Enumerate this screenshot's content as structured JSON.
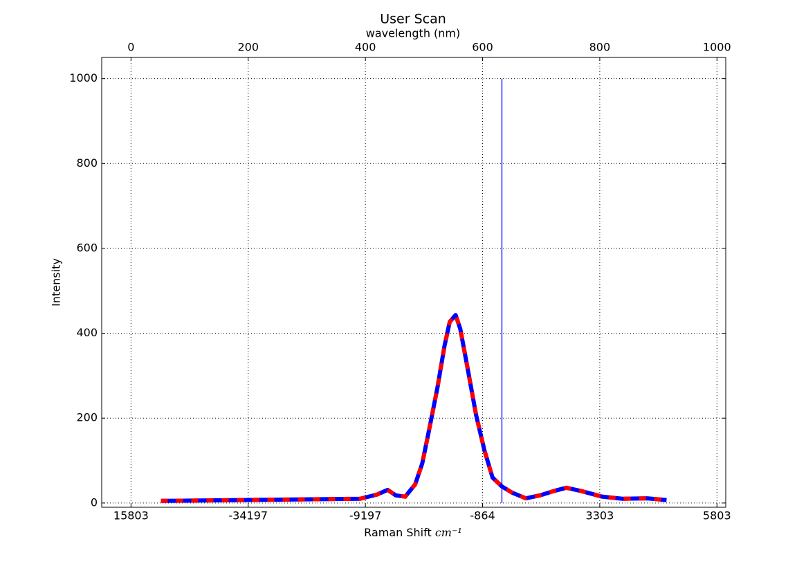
{
  "chart_data": {
    "type": "line",
    "title": "User Scan",
    "x2_label": "wavelength (nm)",
    "x_label": "Raman Shift",
    "x_label_unit": "cm⁻¹",
    "y_label": "Intensity",
    "xlim": [
      -50,
      1015
    ],
    "ylim": [
      -10,
      1050
    ],
    "x2ticks": [
      0,
      200,
      400,
      600,
      800,
      1000
    ],
    "xticks": [
      {
        "value": 0,
        "label": "15803"
      },
      {
        "value": 200,
        "label": "-34197"
      },
      {
        "value": 400,
        "label": "-9197"
      },
      {
        "value": 600,
        "label": "-864"
      },
      {
        "value": 800,
        "label": "3303"
      },
      {
        "value": 1000,
        "label": "5803"
      }
    ],
    "yticks": [
      0,
      200,
      400,
      600,
      800,
      1000
    ],
    "grid": true,
    "series": [
      {
        "color": "#0000ff",
        "dash_color": "#ff0000",
        "x": [
          51,
          391,
          420,
          438,
          452,
          468,
          485,
          497,
          509,
          523,
          535,
          544,
          554,
          562,
          574,
          589,
          603,
          617,
          633,
          651,
          674,
          698,
          721,
          743,
          769,
          804,
          839,
          881,
          914
        ],
        "values": [
          5,
          10,
          20,
          31,
          18,
          15,
          44,
          93,
          174,
          272,
          370,
          427,
          443,
          410,
          321,
          207,
          125,
          60,
          39,
          24,
          11,
          18,
          28,
          36,
          28,
          15,
          10,
          11,
          7
        ]
      },
      {
        "color": "#0000ff",
        "x": [
          633,
          633
        ],
        "values": [
          0,
          1000
        ]
      }
    ]
  }
}
